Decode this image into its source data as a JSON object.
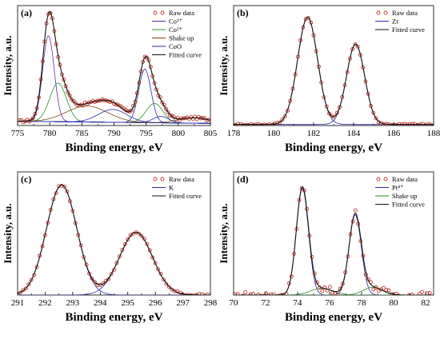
{
  "chart_data": [
    {
      "panel_label": "(a)",
      "type": "line",
      "xlabel": "Binding energy, eV",
      "ylabel": "Intensity, a.u.",
      "xlim": [
        775,
        805
      ],
      "x_ticks": [
        775,
        780,
        785,
        790,
        795,
        800,
        805
      ],
      "ylim": [
        0,
        1.12
      ],
      "legend_position": "top-right",
      "raw_data": {
        "name": "Raw data",
        "color": "#c0392b",
        "x_start": 775.3,
        "x_end": 804.7,
        "step": 0.3
      },
      "series": [
        {
          "name": "Co³⁺",
          "color": "#6a2a9a",
          "peaks": [
            {
              "center": 779.8,
              "height": 0.8,
              "width": 0.9
            }
          ]
        },
        {
          "name": "Co²⁺",
          "color": "#2b8f2b",
          "peaks": [
            {
              "center": 781.3,
              "height": 0.36,
              "width": 1.3
            },
            {
              "center": 796.3,
              "height": 0.18,
              "width": 1.3
            }
          ]
        },
        {
          "name": "Shake up",
          "color": "#7a4a10",
          "peaks": [
            {
              "center": 785.8,
              "height": 0.15,
              "width": 3.2
            },
            {
              "center": 802.5,
              "height": 0.05,
              "width": 2.5
            }
          ]
        },
        {
          "name": "CoO",
          "color": "#2a2ab0",
          "peaks": [
            {
              "center": 789.8,
              "height": 0.12,
              "width": 2.2
            },
            {
              "center": 794.8,
              "height": 0.5,
              "width": 0.95
            },
            {
              "center": 797.3,
              "height": 0.06,
              "width": 1.2
            }
          ]
        },
        {
          "name": "Fitted curve",
          "color": "#111111",
          "fitted": true
        }
      ],
      "baseline": [
        {
          "x": 775,
          "y": 0.04
        },
        {
          "x": 805,
          "y": 0.02
        }
      ],
      "noise": 0.012
    },
    {
      "panel_label": "(b)",
      "type": "line",
      "xlabel": "Binding energy, eV",
      "ylabel": "Intensity, a.u.",
      "xlim": [
        178,
        188
      ],
      "x_ticks": [
        178,
        180,
        182,
        184,
        186,
        188
      ],
      "ylim": [
        0,
        1.12
      ],
      "legend_position": "top-right",
      "raw_data": {
        "name": "Raw data",
        "color": "#c0392b",
        "x_start": 178.1,
        "x_end": 187.9,
        "step": 0.13
      },
      "series": [
        {
          "name": "Zr",
          "color": "#2a2ab0",
          "peaks": [
            {
              "center": 181.7,
              "height": 1.0,
              "width": 0.5
            },
            {
              "center": 184.1,
              "height": 0.75,
              "width": 0.45
            }
          ]
        },
        {
          "name": "Fitted curve",
          "color": "#111111",
          "fitted": true
        }
      ],
      "baseline": [
        {
          "x": 178,
          "y": 0.01
        },
        {
          "x": 188,
          "y": 0.01
        }
      ],
      "noise": 0.008
    },
    {
      "panel_label": "(c)",
      "type": "line",
      "xlabel": "Binding energy, eV",
      "ylabel": "Intensity, a.u.",
      "xlim": [
        291,
        298
      ],
      "x_ticks": [
        291,
        292,
        293,
        294,
        295,
        296,
        297,
        298
      ],
      "ylim": [
        0,
        1.12
      ],
      "legend_position": "top-right",
      "raw_data": {
        "name": "Raw data",
        "color": "#c0392b",
        "x_start": 291.1,
        "x_end": 297.9,
        "step": 0.1
      },
      "series": [
        {
          "name": "K",
          "color": "#2a2ab0",
          "peaks": [
            {
              "center": 292.6,
              "height": 1.0,
              "width": 0.55
            },
            {
              "center": 295.3,
              "height": 0.57,
              "width": 0.6
            }
          ]
        },
        {
          "name": "Fitted curve",
          "color": "#111111",
          "fitted": true
        }
      ],
      "baseline": [
        {
          "x": 291,
          "y": 0.0
        },
        {
          "x": 298,
          "y": 0.0
        }
      ],
      "noise": 0.01
    },
    {
      "panel_label": "(d)",
      "type": "line",
      "xlabel": "Binding energy, eV",
      "ylabel": "Intensity, a.u.",
      "xlim": [
        70,
        82.5
      ],
      "x_ticks": [
        70,
        72,
        74,
        76,
        78,
        80,
        82
      ],
      "ylim": [
        0,
        1.12
      ],
      "legend_position": "top-right",
      "raw_data": {
        "name": "Raw data",
        "color": "#c0392b",
        "x_start": 70.1,
        "x_end": 82.4,
        "step": 0.16
      },
      "series": [
        {
          "name": "Pt⁴⁺",
          "color": "#2a2ab0",
          "peaks": [
            {
              "center": 74.3,
              "height": 0.97,
              "width": 0.38
            },
            {
              "center": 77.6,
              "height": 0.73,
              "width": 0.38
            }
          ]
        },
        {
          "name": "Shake up",
          "color": "#2b8f2b",
          "peaks": [
            {
              "center": 75.5,
              "height": 0.06,
              "width": 0.7
            },
            {
              "center": 78.7,
              "height": 0.07,
              "width": 0.6
            }
          ]
        },
        {
          "name": "Fitted curve",
          "color": "#111111",
          "fitted": true
        }
      ],
      "baseline": [
        {
          "x": 70,
          "y": 0.0
        },
        {
          "x": 82.5,
          "y": 0.0
        }
      ],
      "noise": 0.03
    }
  ]
}
